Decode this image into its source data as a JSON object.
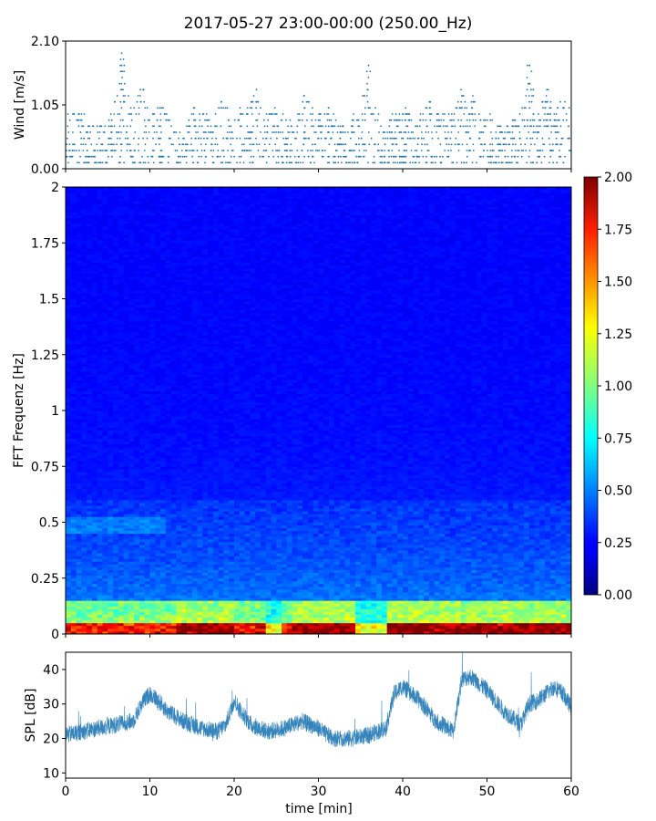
{
  "title": "2017-05-27 23:00-00:00 (250.00_Hz)",
  "chart_data": [
    {
      "id": "wind",
      "type": "scatter",
      "ylabel": "Wind [m/s]",
      "xlim": [
        0,
        60
      ],
      "ylim": [
        0,
        2.1
      ],
      "yticks": [
        "0.00",
        "1.05",
        "2.10"
      ],
      "marker_color": "#1f77b4",
      "peaks": [
        {
          "x": 6.7,
          "y": 2.0
        },
        {
          "x": 9.0,
          "y": 1.4
        },
        {
          "x": 11.2,
          "y": 1.05
        },
        {
          "x": 18.5,
          "y": 1.2
        },
        {
          "x": 22.5,
          "y": 1.4
        },
        {
          "x": 25.0,
          "y": 1.05
        },
        {
          "x": 28.5,
          "y": 1.3
        },
        {
          "x": 31.0,
          "y": 1.05
        },
        {
          "x": 36.0,
          "y": 1.8
        },
        {
          "x": 43.0,
          "y": 1.2
        },
        {
          "x": 47.0,
          "y": 1.3
        },
        {
          "x": 48.5,
          "y": 1.3
        },
        {
          "x": 55.0,
          "y": 1.8
        },
        {
          "x": 57.0,
          "y": 1.4
        },
        {
          "x": 59.0,
          "y": 1.2
        }
      ]
    },
    {
      "id": "spectrogram",
      "type": "heatmap",
      "ylabel": "FFT Frequenz [Hz]",
      "xlim": [
        0,
        60
      ],
      "ylim": [
        0,
        2
      ],
      "yticks": [
        "0",
        "0.25",
        "0.5",
        "0.75",
        "1",
        "1.25",
        "1.5",
        "1.75",
        "2"
      ],
      "colormap": "jet",
      "colorbar": {
        "range": [
          0,
          2
        ],
        "ticks": [
          "0.00",
          "0.25",
          "0.50",
          "0.75",
          "1.00",
          "1.25",
          "1.50",
          "1.75",
          "2.00"
        ]
      }
    },
    {
      "id": "spl",
      "type": "line",
      "ylabel": "SPL [dB]",
      "xlabel": "time [min]",
      "xlim": [
        0,
        60
      ],
      "ylim": [
        8.5,
        45
      ],
      "xticks": [
        "0",
        "10",
        "20",
        "30",
        "40",
        "50",
        "60"
      ],
      "yticks": [
        "10",
        "20",
        "30",
        "40"
      ],
      "line_color": "#1f77b4",
      "x": [
        0,
        2,
        4,
        6,
        8,
        9,
        10,
        11,
        12,
        14,
        16,
        18,
        19,
        20,
        21,
        22,
        24,
        26,
        28,
        30,
        31,
        32,
        34,
        36,
        38,
        39,
        40,
        42,
        44,
        46,
        47,
        48,
        49,
        50,
        52,
        54,
        55,
        56,
        58,
        59,
        60
      ],
      "y": [
        21,
        22,
        23,
        24,
        25,
        30,
        33,
        31,
        28,
        25,
        23,
        22,
        24,
        31,
        27,
        24,
        22,
        23,
        25,
        23,
        21,
        20,
        20,
        21,
        23,
        33,
        35,
        31,
        25,
        22,
        37,
        38,
        36,
        34,
        28,
        24,
        30,
        31,
        35,
        33,
        29
      ]
    }
  ]
}
